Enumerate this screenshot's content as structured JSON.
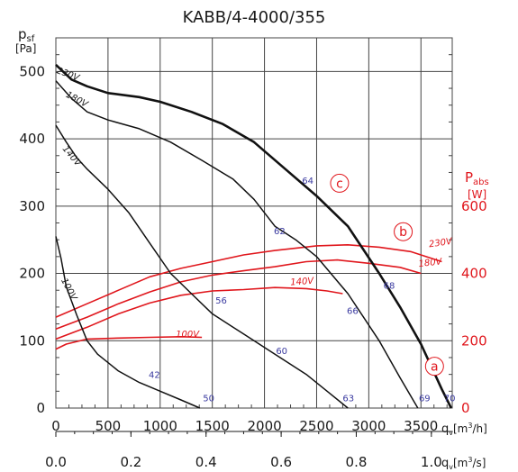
{
  "chart_data": {
    "type": "line",
    "title": "KABB/4-4000/355",
    "y_left_label": {
      "main": "p",
      "sub": "sf",
      "unit": "[Pa]"
    },
    "y_right_label": {
      "main": "P",
      "sub": "abs",
      "unit": "[W]"
    },
    "x_label_m3h": {
      "main": "q",
      "sub": "v",
      "unit_prefix": "[m",
      "unit_sup": "3",
      "unit_suffix": "/h]"
    },
    "x_label_m3s": {
      "main": "q",
      "sub": "v",
      "unit_prefix": "[m",
      "unit_sup": "3",
      "unit_suffix": "/s]"
    },
    "xlim": [
      0,
      3800
    ],
    "ylim_left": [
      0,
      550
    ],
    "ylim_right": [
      0,
      1100
    ],
    "x_ticks": [
      "0",
      "500",
      "1000",
      "1500",
      "2000",
      "2500",
      "3000",
      "3500"
    ],
    "x_tick_values": [
      0,
      500,
      1000,
      1500,
      2000,
      2500,
      3000,
      3500
    ],
    "x2_ticks": [
      "0.0",
      "0.2",
      "0.4",
      "0.6",
      "0.8",
      "1.0"
    ],
    "x2_tick_values": [
      0,
      0.2,
      0.4,
      0.6,
      0.8,
      1.0
    ],
    "y_left_ticks": [
      "0",
      "100",
      "200",
      "300",
      "400",
      "500"
    ],
    "y_left_tick_values": [
      0,
      100,
      200,
      300,
      400,
      500
    ],
    "y_right_ticks": [
      "0",
      "200",
      "400",
      "600"
    ],
    "y_right_tick_values": [
      0,
      200,
      400,
      600
    ],
    "grid": true,
    "pressure_series": [
      {
        "name": "230V",
        "width": 2.6,
        "label_at": [
          2,
          498
        ],
        "label_rot": 20,
        "points": [
          [
            0,
            510
          ],
          [
            150,
            488
          ],
          [
            300,
            478
          ],
          [
            500,
            468
          ],
          [
            800,
            462
          ],
          [
            1000,
            455
          ],
          [
            1300,
            440
          ],
          [
            1600,
            422
          ],
          [
            1900,
            395
          ],
          [
            2200,
            355
          ],
          [
            2500,
            315
          ],
          [
            2800,
            270
          ],
          [
            3100,
            200
          ],
          [
            3300,
            150
          ],
          [
            3500,
            95
          ],
          [
            3700,
            28
          ],
          [
            3790,
            0
          ]
        ]
      },
      {
        "name": "180V",
        "width": 1.5,
        "label_at": [
          90,
          463
        ],
        "label_rot": 28,
        "points": [
          [
            0,
            486
          ],
          [
            150,
            460
          ],
          [
            300,
            440
          ],
          [
            500,
            428
          ],
          [
            800,
            415
          ],
          [
            1100,
            395
          ],
          [
            1400,
            368
          ],
          [
            1700,
            340
          ],
          [
            1900,
            310
          ],
          [
            2100,
            270
          ],
          [
            2300,
            250
          ],
          [
            2500,
            225
          ],
          [
            2800,
            170
          ],
          [
            3100,
            100
          ],
          [
            3300,
            45
          ],
          [
            3470,
            0
          ]
        ]
      },
      {
        "name": "140V",
        "width": 1.5,
        "label_at": [
          60,
          385
        ],
        "label_rot": 50,
        "points": [
          [
            0,
            420
          ],
          [
            100,
            395
          ],
          [
            200,
            372
          ],
          [
            300,
            355
          ],
          [
            500,
            325
          ],
          [
            700,
            290
          ],
          [
            900,
            245
          ],
          [
            1100,
            200
          ],
          [
            1300,
            170
          ],
          [
            1500,
            140
          ],
          [
            1800,
            110
          ],
          [
            2100,
            80
          ],
          [
            2400,
            50
          ],
          [
            2600,
            25
          ],
          [
            2800,
            0
          ]
        ]
      },
      {
        "name": "100V",
        "width": 1.5,
        "label_at": [
          50,
          190
        ],
        "label_rot": 62,
        "points": [
          [
            0,
            255
          ],
          [
            50,
            222
          ],
          [
            100,
            180
          ],
          [
            200,
            138
          ],
          [
            300,
            100
          ],
          [
            400,
            80
          ],
          [
            600,
            55
          ],
          [
            800,
            38
          ],
          [
            1000,
            25
          ],
          [
            1200,
            12
          ],
          [
            1380,
            0
          ]
        ]
      }
    ],
    "power_series": [
      {
        "name": "230V",
        "label_at": [
          3580,
          478
        ],
        "label_rot": -8,
        "points": [
          [
            0,
            270
          ],
          [
            300,
            310
          ],
          [
            600,
            350
          ],
          [
            900,
            390
          ],
          [
            1200,
            415
          ],
          [
            1500,
            435
          ],
          [
            1800,
            455
          ],
          [
            2100,
            468
          ],
          [
            2500,
            482
          ],
          [
            2800,
            485
          ],
          [
            3100,
            478
          ],
          [
            3400,
            465
          ],
          [
            3700,
            435
          ]
        ]
      },
      {
        "name": "180V",
        "label_at": [
          3480,
          420
        ],
        "label_rot": -6,
        "points": [
          [
            0,
            235
          ],
          [
            300,
            270
          ],
          [
            600,
            310
          ],
          [
            900,
            345
          ],
          [
            1200,
            375
          ],
          [
            1500,
            395
          ],
          [
            1800,
            408
          ],
          [
            2100,
            420
          ],
          [
            2400,
            435
          ],
          [
            2700,
            440
          ],
          [
            3000,
            430
          ],
          [
            3300,
            418
          ],
          [
            3500,
            400
          ]
        ]
      },
      {
        "name": "140V",
        "label_at": [
          2250,
          365
        ],
        "label_rot": -4,
        "points": [
          [
            0,
            205
          ],
          [
            300,
            240
          ],
          [
            600,
            280
          ],
          [
            900,
            312
          ],
          [
            1200,
            335
          ],
          [
            1500,
            348
          ],
          [
            1800,
            352
          ],
          [
            2100,
            358
          ],
          [
            2400,
            355
          ],
          [
            2600,
            348
          ],
          [
            2750,
            340
          ]
        ]
      },
      {
        "name": "100V",
        "label_at": [
          1150,
          212
        ],
        "label_rot": 0,
        "points": [
          [
            0,
            175
          ],
          [
            100,
            190
          ],
          [
            300,
            205
          ],
          [
            600,
            208
          ],
          [
            900,
            210
          ],
          [
            1200,
            212
          ],
          [
            1400,
            210
          ]
        ]
      }
    ],
    "noise_labels": [
      {
        "text": "42",
        "at": [
          890,
          45
        ]
      },
      {
        "text": "50",
        "at": [
          1410,
          10
        ]
      },
      {
        "text": "56",
        "at": [
          1530,
          155
        ]
      },
      {
        "text": "60",
        "at": [
          2110,
          80
        ]
      },
      {
        "text": "62",
        "at": [
          2090,
          258
        ]
      },
      {
        "text": "63",
        "at": [
          2750,
          10
        ]
      },
      {
        "text": "64",
        "at": [
          2360,
          333
        ]
      },
      {
        "text": "66",
        "at": [
          2790,
          140
        ]
      },
      {
        "text": "68",
        "at": [
          3140,
          177
        ]
      },
      {
        "text": "69",
        "at": [
          3480,
          10
        ]
      },
      {
        "text": "70",
        "at": [
          3720,
          10
        ]
      }
    ],
    "markers": [
      {
        "text": "c",
        "at": [
          2720,
          334
        ]
      },
      {
        "text": "b",
        "at": [
          3330,
          262
        ]
      },
      {
        "text": "a",
        "at": [
          3630,
          62
        ]
      }
    ],
    "colors": {
      "pressure": "#111111",
      "power": "#e0161c",
      "noise": "#3a3aa0",
      "grid": "#444444"
    }
  }
}
